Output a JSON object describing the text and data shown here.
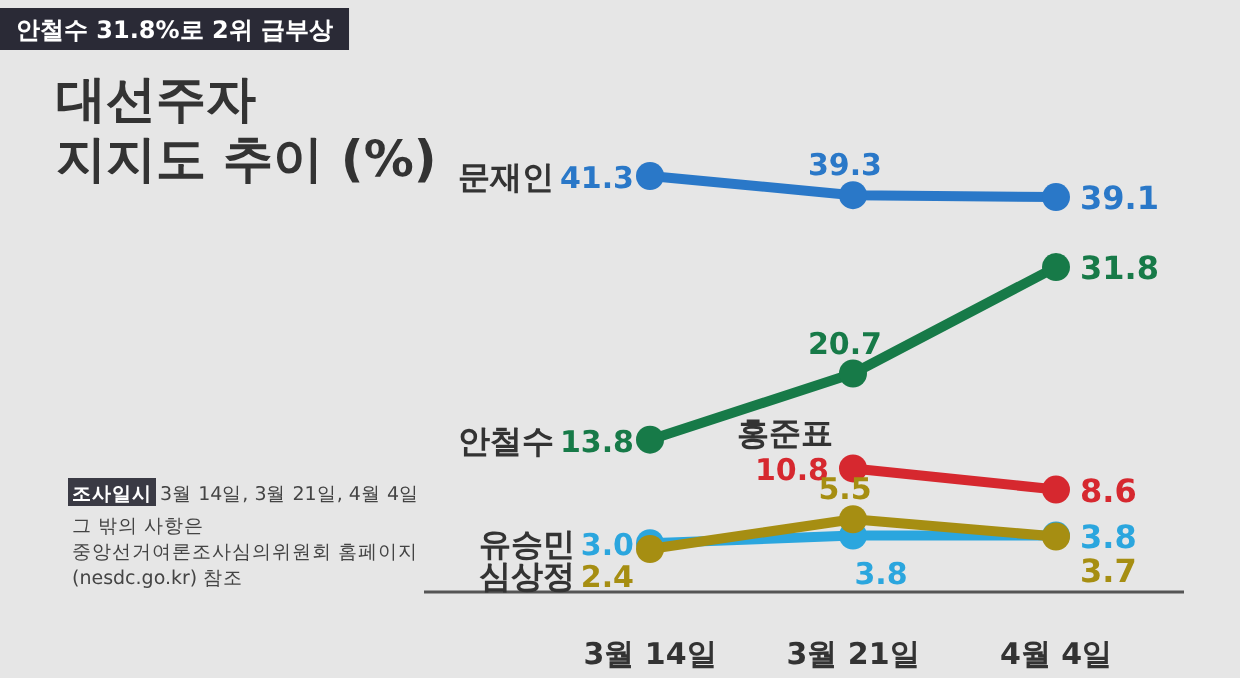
{
  "chart_data": {
    "type": "line",
    "title": "대선주자 지지도 추이 (%)",
    "subtitle": "안철수 31.8%로 2위 급부상",
    "categories": [
      "3월 14일",
      "3월 21일",
      "4월 4일"
    ],
    "series": [
      {
        "name": "문재인",
        "color": "#2a78c8",
        "values": [
          41.3,
          39.3,
          39.1
        ],
        "value_labels": [
          "41.3",
          "39.3",
          "39.1"
        ]
      },
      {
        "name": "안철수",
        "color": "#177a48",
        "values": [
          13.8,
          20.7,
          31.8
        ],
        "value_labels": [
          "13.8",
          "20.7",
          "31.8"
        ]
      },
      {
        "name": "홍준표",
        "color": "#d6282f",
        "values": [
          null,
          10.8,
          8.6
        ],
        "value_labels": [
          null,
          "10.8",
          "8.6"
        ]
      },
      {
        "name": "유승민",
        "color": "#2ba6de",
        "values": [
          3.0,
          3.8,
          3.8
        ],
        "value_labels": [
          "3.0",
          "3.8",
          "3.8"
        ]
      },
      {
        "name": "심상정",
        "color": "#a68e12",
        "values": [
          2.4,
          5.5,
          3.7
        ],
        "value_labels": [
          "2.4",
          "5.5",
          "3.7"
        ]
      }
    ],
    "marker": "circle",
    "annotations": [
      "조사일시 3월 14일, 3월 21일, 4월 4일",
      "그 밖의 사항은 중앙선거여론조사심의위원회 홈페이지 (nesdc.go.kr) 참조"
    ]
  }
}
